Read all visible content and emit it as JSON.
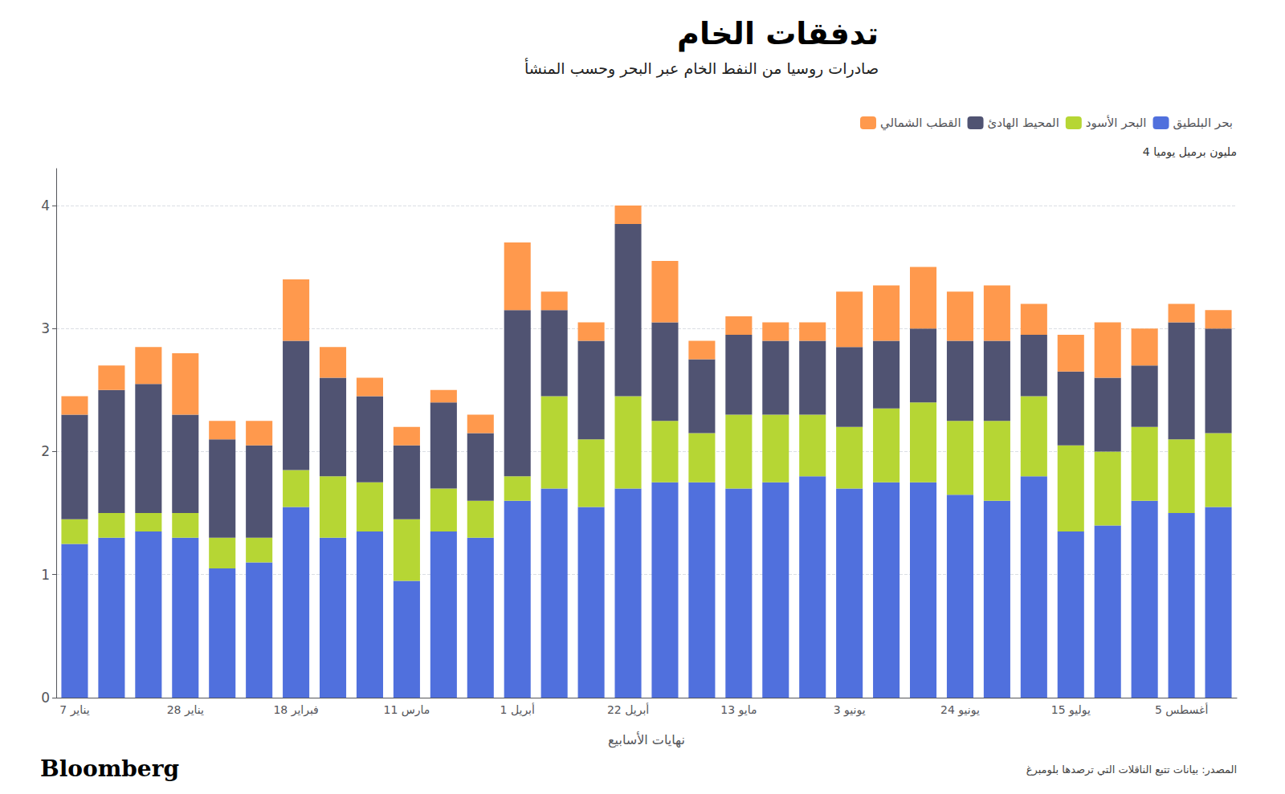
{
  "chart_data": {
    "type": "bar",
    "title": "تدفقات الخام",
    "subtitle": "صادرات روسيا من النفط الخام عبر البحر وحسب المنشأ",
    "xlabel": "نهايات الأسابيع",
    "ylabel": "4 مليون برميل يوميا",
    "annotations": [
      "المصدر: بيانات تتبع الناقلات التي ترصدها بلومبرغ",
      "Bloomberg"
    ],
    "categories": [
      "7 يناير",
      null,
      null,
      "28 يناير",
      null,
      null,
      "18 فبراير",
      null,
      null,
      "11 مارس",
      null,
      null,
      "1 أبريل",
      null,
      null,
      "22 أبريل",
      null,
      null,
      "13 مايو",
      null,
      null,
      "3 يونيو",
      null,
      null,
      "24 يونيو",
      null,
      null,
      "15 يوليو",
      null,
      null,
      "5 أغسطس",
      null
    ],
    "series": [
      {
        "name": "بحر البلطيق",
        "values": [
          1.25,
          1.3,
          1.35,
          1.3,
          1.05,
          1.1,
          1.55,
          1.3,
          1.35,
          0.95,
          1.35,
          1.3,
          1.6,
          1.7,
          1.55,
          1.7,
          1.75,
          1.75,
          1.7,
          1.75,
          1.8,
          1.7,
          1.75,
          1.75,
          1.65,
          1.6,
          1.8,
          1.35,
          1.4,
          1.6,
          1.5,
          1.55
        ]
      },
      {
        "name": "البحر الأسود",
        "values": [
          0.2,
          0.2,
          0.15,
          0.2,
          0.25,
          0.2,
          0.3,
          0.5,
          0.4,
          0.5,
          0.35,
          0.3,
          0.2,
          0.75,
          0.55,
          0.75,
          0.5,
          0.4,
          0.6,
          0.55,
          0.5,
          0.5,
          0.6,
          0.65,
          0.6,
          0.65,
          0.65,
          0.7,
          0.6,
          0.6,
          0.6,
          0.6
        ]
      },
      {
        "name": "المحيط الهادئ",
        "values": [
          0.85,
          1.0,
          1.05,
          0.8,
          0.8,
          0.75,
          1.05,
          0.8,
          0.7,
          0.6,
          0.7,
          0.55,
          1.35,
          0.7,
          0.8,
          1.4,
          0.8,
          0.6,
          0.65,
          0.6,
          0.6,
          0.65,
          0.55,
          0.6,
          0.65,
          0.65,
          0.5,
          0.6,
          0.6,
          0.5,
          0.95,
          0.85
        ]
      },
      {
        "name": "القطب الشمالي",
        "values": [
          0.15,
          0.2,
          0.3,
          0.5,
          0.15,
          0.2,
          0.5,
          0.25,
          0.15,
          0.15,
          0.1,
          0.15,
          0.55,
          0.15,
          0.15,
          0.15,
          0.5,
          0.15,
          0.15,
          0.15,
          0.15,
          0.45,
          0.45,
          0.5,
          0.4,
          0.45,
          0.25,
          0.3,
          0.45,
          0.3,
          0.15,
          0.15
        ]
      }
    ],
    "stacked": true,
    "ylim": [
      0,
      4.3
    ],
    "yticks": [
      0,
      1,
      2,
      3,
      4
    ],
    "grid": true,
    "legend": "upper right"
  }
}
